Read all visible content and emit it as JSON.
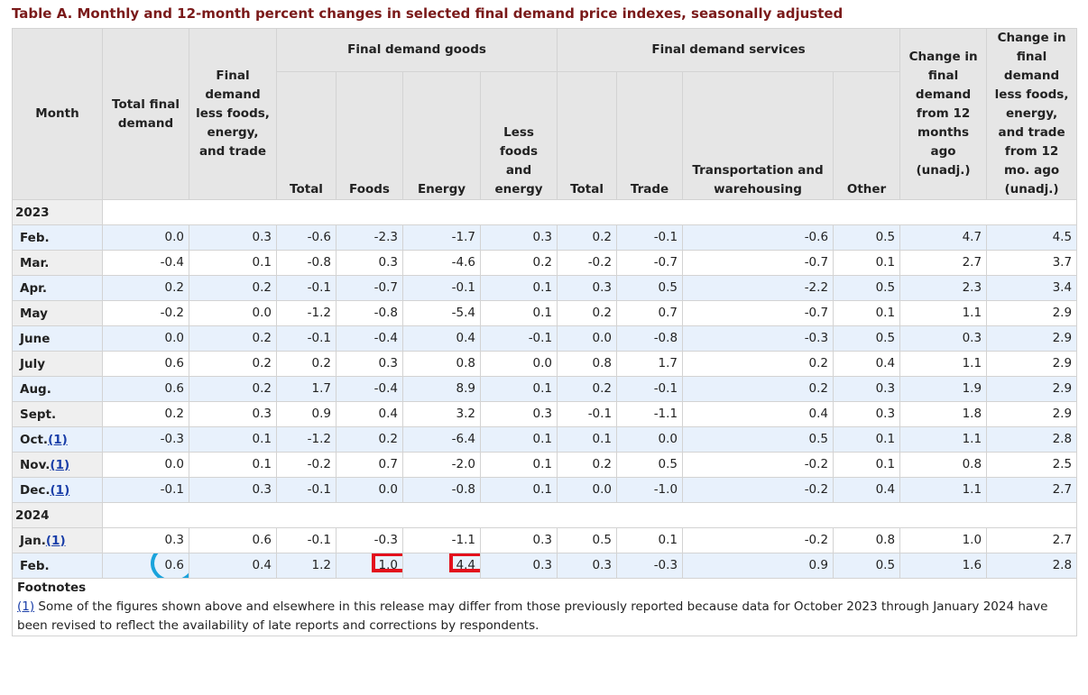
{
  "caption": "Table A. Monthly and 12-month percent changes in selected final demand price indexes, seasonally adjusted",
  "headers": {
    "month": "Month",
    "total_final_demand": "Total final demand",
    "fd_less": "Final demand less foods, energy, and trade",
    "goods_group": "Final demand goods",
    "services_group": "Final demand services",
    "goods_total": "Total",
    "goods_foods": "Foods",
    "goods_energy": "Energy",
    "goods_less": "Less foods and energy",
    "serv_total": "Total",
    "serv_trade": "Trade",
    "serv_transport": "Transportation and warehousing",
    "serv_other": "Other",
    "change12": "Change in final demand from 12 months ago (unadj.)",
    "change12_less": "Change in final demand less foods, energy, and trade from 12 mo. ago (unadj.)"
  },
  "years": [
    "2023",
    "2024"
  ],
  "footnote_ref": "(1)",
  "rows_2023": [
    {
      "month": "Feb.",
      "fn": false,
      "v": [
        "0.0",
        "0.3",
        "-0.6",
        "-2.3",
        "-1.7",
        "0.3",
        "0.2",
        "-0.1",
        "-0.6",
        "0.5",
        "4.7",
        "4.5"
      ]
    },
    {
      "month": "Mar.",
      "fn": false,
      "v": [
        "-0.4",
        "0.1",
        "-0.8",
        "0.3",
        "-4.6",
        "0.2",
        "-0.2",
        "-0.7",
        "-0.7",
        "0.1",
        "2.7",
        "3.7"
      ]
    },
    {
      "month": "Apr.",
      "fn": false,
      "v": [
        "0.2",
        "0.2",
        "-0.1",
        "-0.7",
        "-0.1",
        "0.1",
        "0.3",
        "0.5",
        "-2.2",
        "0.5",
        "2.3",
        "3.4"
      ]
    },
    {
      "month": "May",
      "fn": false,
      "v": [
        "-0.2",
        "0.0",
        "-1.2",
        "-0.8",
        "-5.4",
        "0.1",
        "0.2",
        "0.7",
        "-0.7",
        "0.1",
        "1.1",
        "2.9"
      ]
    },
    {
      "month": "June",
      "fn": false,
      "v": [
        "0.0",
        "0.2",
        "-0.1",
        "-0.4",
        "0.4",
        "-0.1",
        "0.0",
        "-0.8",
        "-0.3",
        "0.5",
        "0.3",
        "2.9"
      ]
    },
    {
      "month": "July",
      "fn": false,
      "v": [
        "0.6",
        "0.2",
        "0.2",
        "0.3",
        "0.8",
        "0.0",
        "0.8",
        "1.7",
        "0.2",
        "0.4",
        "1.1",
        "2.9"
      ]
    },
    {
      "month": "Aug.",
      "fn": false,
      "v": [
        "0.6",
        "0.2",
        "1.7",
        "-0.4",
        "8.9",
        "0.1",
        "0.2",
        "-0.1",
        "0.2",
        "0.3",
        "1.9",
        "2.9"
      ]
    },
    {
      "month": "Sept.",
      "fn": false,
      "v": [
        "0.2",
        "0.3",
        "0.9",
        "0.4",
        "3.2",
        "0.3",
        "-0.1",
        "-1.1",
        "0.4",
        "0.3",
        "1.8",
        "2.9"
      ]
    },
    {
      "month": "Oct.",
      "fn": true,
      "v": [
        "-0.3",
        "0.1",
        "-1.2",
        "0.2",
        "-6.4",
        "0.1",
        "0.1",
        "0.0",
        "0.5",
        "0.1",
        "1.1",
        "2.8"
      ]
    },
    {
      "month": "Nov.",
      "fn": true,
      "v": [
        "0.0",
        "0.1",
        "-0.2",
        "0.7",
        "-2.0",
        "0.1",
        "0.2",
        "0.5",
        "-0.2",
        "0.1",
        "0.8",
        "2.5"
      ]
    },
    {
      "month": "Dec.",
      "fn": true,
      "v": [
        "-0.1",
        "0.3",
        "-0.1",
        "0.0",
        "-0.8",
        "0.1",
        "0.0",
        "-1.0",
        "-0.2",
        "0.4",
        "1.1",
        "2.7"
      ]
    }
  ],
  "rows_2024": [
    {
      "month": "Jan.",
      "fn": true,
      "v": [
        "0.3",
        "0.6",
        "-0.1",
        "-0.3",
        "-1.1",
        "0.3",
        "0.5",
        "0.1",
        "-0.2",
        "0.8",
        "1.0",
        "2.7"
      ]
    },
    {
      "month": "Feb.",
      "fn": false,
      "v": [
        "0.6",
        "0.4",
        "1.2",
        "1.0",
        "4.4",
        "0.3",
        "0.3",
        "-0.3",
        "0.9",
        "0.5",
        "1.6",
        "2.8"
      ]
    }
  ],
  "highlights": [
    {
      "row": "2024-Feb.",
      "column": "Total final demand",
      "shape": "circle",
      "color": "#1aa3dc"
    },
    {
      "row": "2024-Feb.",
      "column": "Foods",
      "shape": "box",
      "color": "#e3101c"
    },
    {
      "row": "2024-Feb.",
      "column": "Energy",
      "shape": "box",
      "color": "#e3101c"
    }
  ],
  "footnotes": {
    "title": "Footnotes",
    "text": " Some of the figures shown above and elsewhere in this release may differ from those previously reported because data for October 2023 through January 2024 have been revised to reflect the availability of late reports and corrections by respondents."
  }
}
